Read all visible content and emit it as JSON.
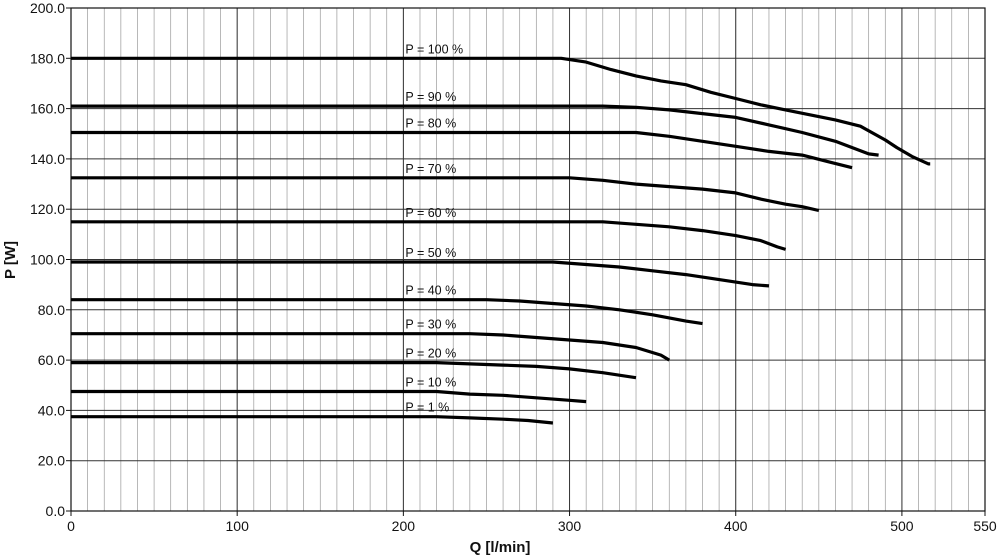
{
  "chart_data": {
    "type": "line",
    "title": "",
    "xlabel": "Q [l/min]",
    "ylabel": "P [W]",
    "xlim": [
      0,
      550
    ],
    "ylim": [
      0,
      200
    ],
    "x_ticks": [
      "0",
      "100",
      "200",
      "300",
      "400",
      "500",
      "550"
    ],
    "y_ticks": [
      "0.0",
      "20.0",
      "40.0",
      "60.0",
      "80.0",
      "100.0",
      "120.0",
      "140.0",
      "160.0",
      "180.0",
      "200.0"
    ],
    "x_minor_step": 10,
    "grid": true,
    "legend": "none",
    "line_color": "#000000",
    "series": [
      {
        "name": "P = 100 %",
        "points": [
          [
            0,
            180
          ],
          [
            295,
            180
          ],
          [
            310,
            178.5
          ],
          [
            325,
            175.5
          ],
          [
            340,
            173
          ],
          [
            355,
            171
          ],
          [
            370,
            169.5
          ],
          [
            385,
            166.5
          ],
          [
            400,
            164
          ],
          [
            415,
            161.5
          ],
          [
            430,
            159.5
          ],
          [
            445,
            157.5
          ],
          [
            460,
            155.5
          ],
          [
            475,
            153
          ],
          [
            490,
            147.5
          ],
          [
            497,
            144.5
          ],
          [
            506,
            141
          ],
          [
            516,
            138
          ],
          [
            517,
            138
          ]
        ]
      },
      {
        "name": "P = 90 %",
        "points": [
          [
            0,
            161
          ],
          [
            320,
            161
          ],
          [
            340,
            160.5
          ],
          [
            360,
            159.5
          ],
          [
            380,
            158
          ],
          [
            400,
            156.5
          ],
          [
            420,
            153.5
          ],
          [
            440,
            150.5
          ],
          [
            460,
            147
          ],
          [
            480,
            142
          ],
          [
            486,
            141.5
          ]
        ]
      },
      {
        "name": "P = 80 %",
        "points": [
          [
            0,
            150.5
          ],
          [
            340,
            150.5
          ],
          [
            360,
            149
          ],
          [
            380,
            147
          ],
          [
            400,
            145
          ],
          [
            420,
            143
          ],
          [
            440,
            141.5
          ],
          [
            455,
            139
          ],
          [
            470,
            136.5
          ]
        ]
      },
      {
        "name": "P = 70 %",
        "points": [
          [
            0,
            132.5
          ],
          [
            300,
            132.5
          ],
          [
            320,
            131.5
          ],
          [
            340,
            130
          ],
          [
            360,
            129
          ],
          [
            380,
            128
          ],
          [
            400,
            126.5
          ],
          [
            415,
            124
          ],
          [
            430,
            122
          ],
          [
            440,
            121
          ],
          [
            450,
            119.5
          ]
        ]
      },
      {
        "name": "P = 60 %",
        "points": [
          [
            0,
            115
          ],
          [
            320,
            115
          ],
          [
            340,
            114
          ],
          [
            360,
            113
          ],
          [
            380,
            111.5
          ],
          [
            400,
            109.5
          ],
          [
            415,
            107.5
          ],
          [
            425,
            105
          ],
          [
            430,
            104
          ]
        ]
      },
      {
        "name": "P = 50 %",
        "points": [
          [
            0,
            99
          ],
          [
            290,
            99
          ],
          [
            310,
            98
          ],
          [
            330,
            97
          ],
          [
            350,
            95.5
          ],
          [
            370,
            94
          ],
          [
            390,
            92
          ],
          [
            410,
            90
          ],
          [
            420,
            89.5
          ]
        ]
      },
      {
        "name": "P = 40 %",
        "points": [
          [
            0,
            84
          ],
          [
            250,
            84
          ],
          [
            270,
            83.5
          ],
          [
            290,
            82.5
          ],
          [
            310,
            81.5
          ],
          [
            330,
            80
          ],
          [
            350,
            78
          ],
          [
            370,
            75.5
          ],
          [
            380,
            74.5
          ]
        ]
      },
      {
        "name": "P = 30 %",
        "points": [
          [
            0,
            70.5
          ],
          [
            240,
            70.5
          ],
          [
            260,
            70
          ],
          [
            280,
            69
          ],
          [
            300,
            68
          ],
          [
            320,
            67
          ],
          [
            340,
            65
          ],
          [
            355,
            62
          ],
          [
            360,
            60
          ]
        ]
      },
      {
        "name": "P = 20 %",
        "points": [
          [
            0,
            59
          ],
          [
            220,
            59
          ],
          [
            240,
            58.5
          ],
          [
            260,
            58
          ],
          [
            280,
            57.5
          ],
          [
            300,
            56.5
          ],
          [
            320,
            55
          ],
          [
            340,
            53
          ]
        ]
      },
      {
        "name": "P = 10 %",
        "points": [
          [
            0,
            47.5
          ],
          [
            200,
            47.5
          ],
          [
            220,
            47.5
          ],
          [
            240,
            46.5
          ],
          [
            260,
            46
          ],
          [
            280,
            45
          ],
          [
            300,
            44
          ],
          [
            310,
            43.5
          ]
        ]
      },
      {
        "name": "P = 1 %",
        "points": [
          [
            0,
            37.5
          ],
          [
            200,
            37.5
          ],
          [
            220,
            37.5
          ],
          [
            240,
            37
          ],
          [
            260,
            36.5
          ],
          [
            275,
            36
          ],
          [
            290,
            35
          ]
        ]
      }
    ]
  }
}
